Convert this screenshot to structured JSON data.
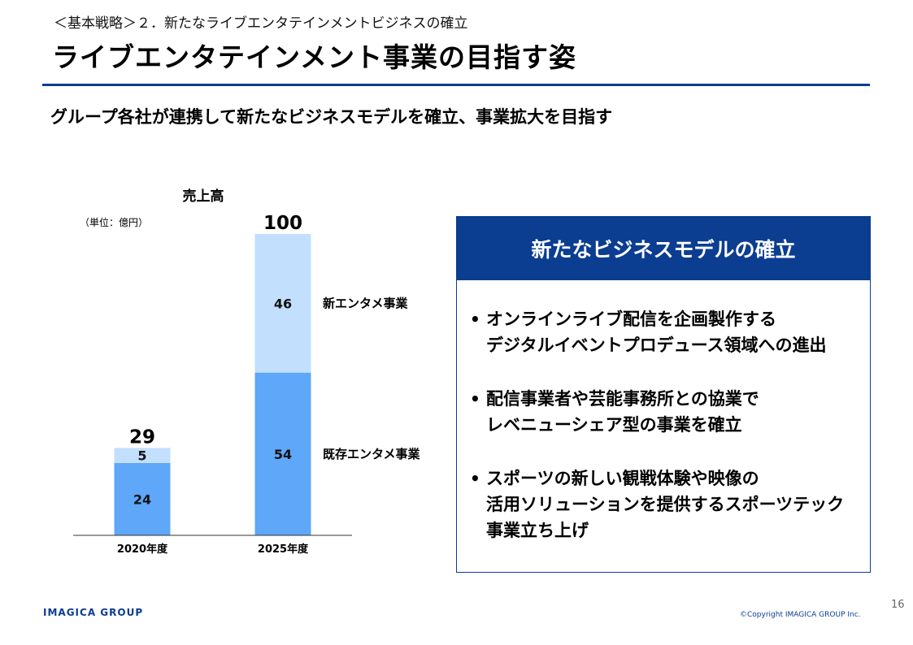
{
  "header": {
    "breadcrumb": "＜基本戦略＞２．新たなライブエンタテインメントビジネスの確立",
    "title": "ライブエンタテインメント事業の目指す姿",
    "subtitle": "グループ各社が連携して新たなビジネスモデルを確立、事業拡大を目指す"
  },
  "chart_data": {
    "type": "bar",
    "stacked": true,
    "title": "売上高",
    "unit_label": "（単位：億円）",
    "categories": [
      "2020年度",
      "2025年度"
    ],
    "totals": [
      29,
      100
    ],
    "series": [
      {
        "name": "既存エンタメ事業",
        "values": [
          24,
          54
        ],
        "color": "#5ea7f9"
      },
      {
        "name": "新エンタメ事業",
        "values": [
          5,
          46
        ],
        "color": "#c2dffd"
      }
    ],
    "ylim": [
      0,
      100
    ],
    "grid": false
  },
  "panel": {
    "title": "新たなビジネスモデルの確立",
    "bullets": [
      {
        "lines": [
          "オンラインライブ配信を企画製作する",
          "デジタルイベントプロデュース領域への進出"
        ]
      },
      {
        "lines": [
          "配信事業者や芸能事務所との協業で",
          "レベニューシェア型の事業を確立"
        ]
      },
      {
        "lines": [
          "スポーツの新しい観戦体験や映像の",
          "活用ソリューションを提供するスポーツテック",
          "事業立ち上げ"
        ]
      }
    ]
  },
  "footer": {
    "logo": "IMAGICA GROUP",
    "copyright": "©Copyright IMAGICA GROUP Inc.",
    "page_number": "16"
  },
  "colors": {
    "brand_navy": "#0b3d91",
    "bar_existing": "#5ea7f9",
    "bar_new": "#c2dffd"
  }
}
